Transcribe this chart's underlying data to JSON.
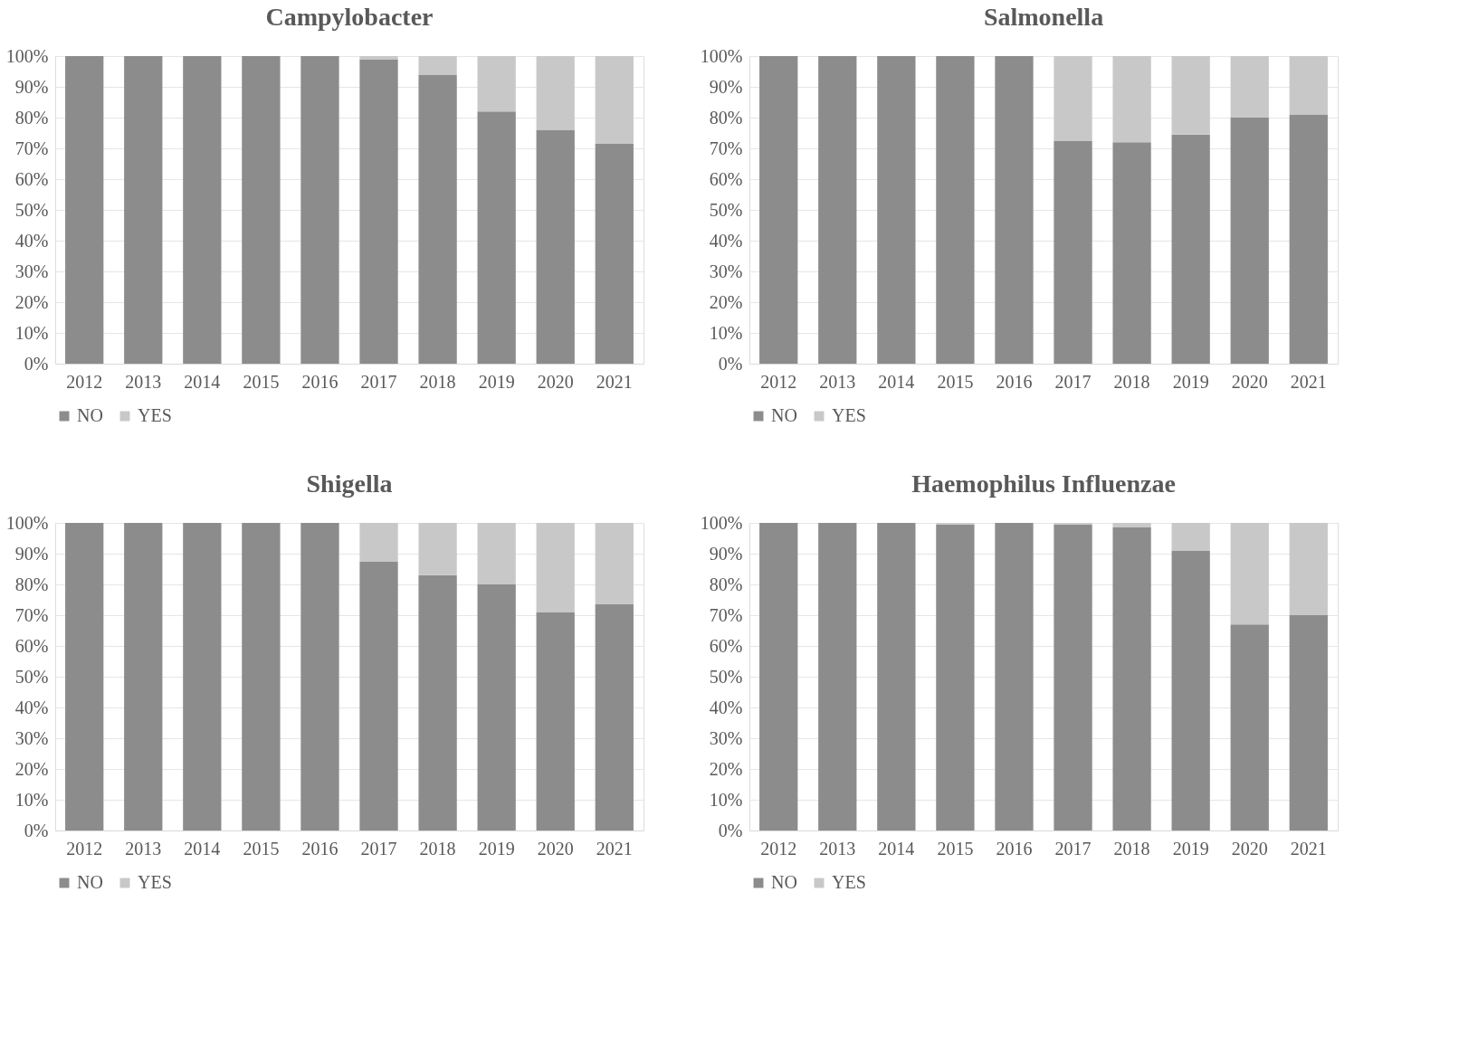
{
  "chart_data": [
    {
      "type": "bar",
      "title": "Campylobacter",
      "stacked": true,
      "categories": [
        "2012",
        "2013",
        "2014",
        "2015",
        "2016",
        "2017",
        "2018",
        "2019",
        "2020",
        "2021"
      ],
      "ylim": [
        0,
        100
      ],
      "yticks": [
        {
          "value": 0,
          "label": "0%"
        },
        {
          "value": 10,
          "label": "10%"
        },
        {
          "value": 20,
          "label": "20%"
        },
        {
          "value": 30,
          "label": "30%"
        },
        {
          "value": 40,
          "label": "40%"
        },
        {
          "value": 50,
          "label": "50%"
        },
        {
          "value": 60,
          "label": "60%"
        },
        {
          "value": 70,
          "label": "70%"
        },
        {
          "value": 80,
          "label": "80%"
        },
        {
          "value": 90,
          "label": "90%"
        },
        {
          "value": 100,
          "label": "100%"
        }
      ],
      "grid": "y",
      "legend": "bottom",
      "series": [
        {
          "name": "NO",
          "color": "#8c8c8c",
          "values": [
            100,
            100,
            100,
            100,
            100,
            99,
            94,
            82,
            76,
            71.5
          ]
        },
        {
          "name": "YES",
          "color": "#c8c8c8",
          "values": [
            0,
            0,
            0,
            0,
            0,
            1,
            6,
            18,
            24,
            28.5
          ]
        }
      ]
    },
    {
      "type": "bar",
      "title": "Salmonella",
      "stacked": true,
      "categories": [
        "2012",
        "2013",
        "2014",
        "2015",
        "2016",
        "2017",
        "2018",
        "2019",
        "2020",
        "2021"
      ],
      "ylim": [
        0,
        100
      ],
      "yticks": [
        {
          "value": 0,
          "label": "0%"
        },
        {
          "value": 10,
          "label": "10%"
        },
        {
          "value": 20,
          "label": "20%"
        },
        {
          "value": 30,
          "label": "30%"
        },
        {
          "value": 40,
          "label": "40%"
        },
        {
          "value": 50,
          "label": "50%"
        },
        {
          "value": 60,
          "label": "60%"
        },
        {
          "value": 70,
          "label": "70%"
        },
        {
          "value": 80,
          "label": "80%"
        },
        {
          "value": 90,
          "label": "90%"
        },
        {
          "value": 100,
          "label": "100%"
        }
      ],
      "grid": "y",
      "legend": "bottom",
      "series": [
        {
          "name": "NO",
          "color": "#8c8c8c",
          "values": [
            100,
            100,
            100,
            100,
            100,
            72.5,
            72,
            74.5,
            80,
            81
          ]
        },
        {
          "name": "YES",
          "color": "#c8c8c8",
          "values": [
            0,
            0,
            0,
            0,
            0,
            27.5,
            28,
            25.5,
            20,
            19
          ]
        }
      ]
    },
    {
      "type": "bar",
      "title": "Shigella",
      "stacked": true,
      "categories": [
        "2012",
        "2013",
        "2014",
        "2015",
        "2016",
        "2017",
        "2018",
        "2019",
        "2020",
        "2021"
      ],
      "ylim": [
        0,
        100
      ],
      "yticks": [
        {
          "value": 0,
          "label": "0%"
        },
        {
          "value": 10,
          "label": "10%"
        },
        {
          "value": 20,
          "label": "20%"
        },
        {
          "value": 30,
          "label": "30%"
        },
        {
          "value": 40,
          "label": "40%"
        },
        {
          "value": 50,
          "label": "50%"
        },
        {
          "value": 60,
          "label": "60%"
        },
        {
          "value": 70,
          "label": "70%"
        },
        {
          "value": 80,
          "label": "80%"
        },
        {
          "value": 90,
          "label": "90%"
        },
        {
          "value": 100,
          "label": "100%"
        }
      ],
      "grid": "y",
      "legend": "bottom",
      "series": [
        {
          "name": "NO",
          "color": "#8c8c8c",
          "values": [
            100,
            100,
            100,
            100,
            100,
            87.5,
            83,
            80,
            71,
            73.5
          ]
        },
        {
          "name": "YES",
          "color": "#c8c8c8",
          "values": [
            0,
            0,
            0,
            0,
            0,
            12.5,
            17,
            20,
            29,
            26.5
          ]
        }
      ]
    },
    {
      "type": "bar",
      "title": "Haemophilus Influenzae",
      "stacked": true,
      "categories": [
        "2012",
        "2013",
        "2014",
        "2015",
        "2016",
        "2017",
        "2018",
        "2019",
        "2020",
        "2021"
      ],
      "ylim": [
        0,
        100
      ],
      "yticks": [
        {
          "value": 0,
          "label": "0%"
        },
        {
          "value": 10,
          "label": "10%"
        },
        {
          "value": 20,
          "label": "20%"
        },
        {
          "value": 30,
          "label": "30%"
        },
        {
          "value": 40,
          "label": "40%"
        },
        {
          "value": 50,
          "label": "50%"
        },
        {
          "value": 60,
          "label": "60%"
        },
        {
          "value": 70,
          "label": "70%"
        },
        {
          "value": 80,
          "label": "80%"
        },
        {
          "value": 90,
          "label": "90%"
        },
        {
          "value": 100,
          "label": "100%"
        }
      ],
      "grid": "y",
      "legend": "bottom",
      "series": [
        {
          "name": "NO",
          "color": "#8c8c8c",
          "values": [
            100,
            100,
            100,
            99.5,
            100,
            99.5,
            98.5,
            91,
            67,
            70
          ]
        },
        {
          "name": "YES",
          "color": "#c8c8c8",
          "values": [
            0,
            0,
            0,
            0.5,
            0,
            0.5,
            1.5,
            9,
            33,
            30
          ]
        }
      ]
    }
  ]
}
